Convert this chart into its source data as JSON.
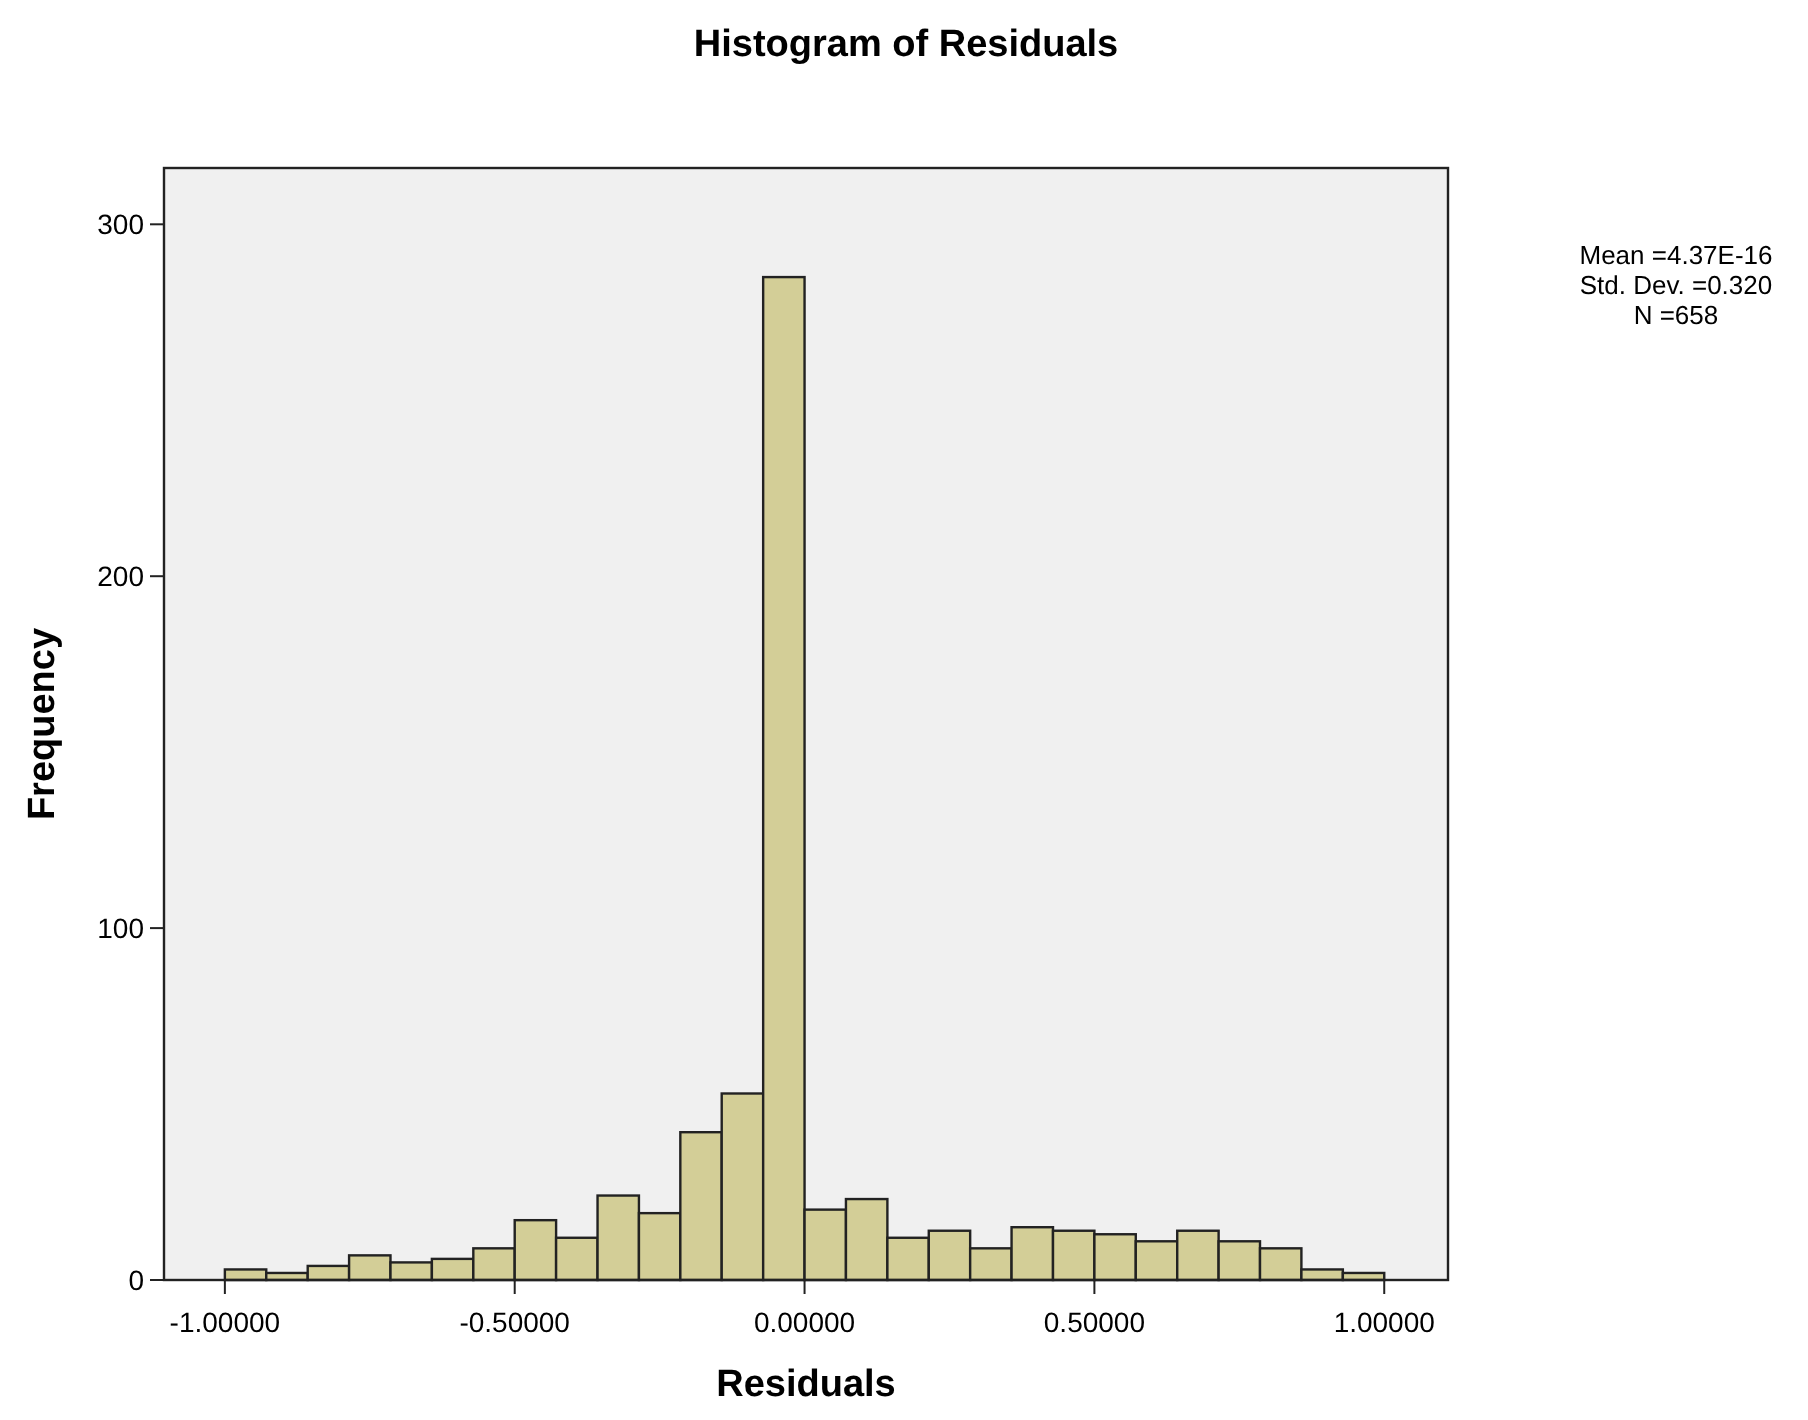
{
  "chart_data": {
    "type": "histogram",
    "title": "Histogram of Residuals",
    "xlabel": "Residuals",
    "ylabel": "Frequency",
    "bins": [
      -1,
      -0.9286,
      -0.8571,
      -0.7857,
      -0.7143,
      -0.6429,
      -0.5714,
      -0.5,
      -0.4286,
      -0.3571,
      -0.2857,
      -0.2143,
      -0.1429,
      -0.0714,
      0,
      0.0714,
      0.1429,
      0.2143,
      0.2857,
      0.3571,
      0.4286,
      0.5,
      0.5714,
      0.6429,
      0.7143,
      0.7857,
      0.8571,
      0.9286,
      1
    ],
    "values": [
      3,
      2,
      4,
      7,
      5,
      6,
      9,
      17,
      12,
      24,
      19,
      42,
      53,
      285,
      20,
      23,
      12,
      14,
      9,
      15,
      14,
      13,
      11,
      14,
      11,
      9,
      3,
      2
    ],
    "color": "#d3ce97",
    "xlim": [
      -1.105,
      1.11
    ],
    "ylim": [
      0,
      316
    ],
    "xticks": [
      {
        "value": -1,
        "label": "-1.00000"
      },
      {
        "value": -0.5,
        "label": "-0.50000"
      },
      {
        "value": 0,
        "label": "0.00000"
      },
      {
        "value": 0.5,
        "label": "0.50000"
      },
      {
        "value": 1,
        "label": "1.00000"
      }
    ],
    "yticks": [
      0,
      100,
      200,
      300
    ],
    "grid": false,
    "annotations": [
      "Mean =4.37E-16",
      "Std. Dev. =0.320",
      "N =658"
    ]
  }
}
